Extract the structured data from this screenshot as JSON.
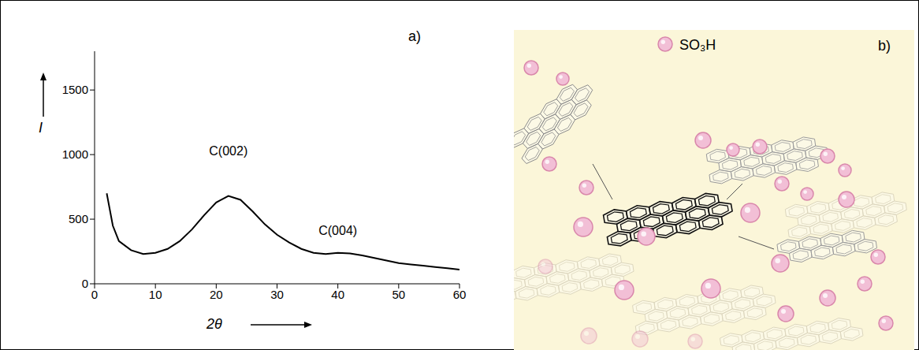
{
  "chart_data": {
    "type": "line",
    "panel": "a)",
    "x_label": "2θ",
    "y_label": "I",
    "x": [
      2,
      3,
      4,
      6,
      8,
      10,
      12,
      14,
      16,
      18,
      20,
      22,
      24,
      26,
      28,
      30,
      32,
      34,
      36,
      38,
      40,
      42,
      44,
      46,
      48,
      50,
      52,
      54,
      56,
      58,
      60
    ],
    "values": [
      700,
      450,
      330,
      260,
      230,
      240,
      270,
      330,
      420,
      530,
      630,
      680,
      650,
      560,
      460,
      380,
      320,
      270,
      240,
      230,
      240,
      235,
      220,
      200,
      180,
      160,
      150,
      140,
      130,
      120,
      110
    ],
    "color": "#000000",
    "xlim": [
      0,
      60
    ],
    "xticks": [
      0,
      10,
      20,
      30,
      40,
      50,
      60
    ],
    "ylim": [
      0,
      1800
    ],
    "yticks": [
      0,
      500,
      1000,
      1500
    ],
    "grid": false,
    "annotations": [
      {
        "text": "C(002)",
        "x": 22,
        "y": 960
      },
      {
        "text": "C(004)",
        "x": 40,
        "y": 340
      }
    ]
  },
  "diagram": {
    "panel": "b)",
    "marker_label": "SO₃H",
    "marker_color": "#f2bfd6"
  }
}
